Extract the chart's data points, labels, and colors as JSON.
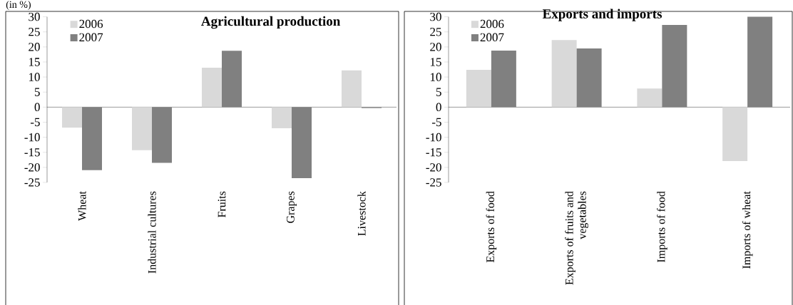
{
  "chart_data": [
    {
      "type": "bar",
      "title": "Agricultural production",
      "categories": [
        "Wheat",
        "Industrial cultures",
        "Fruits",
        "Grapes",
        "Livestock"
      ],
      "series": [
        {
          "name": "2006",
          "color": "#d9d9d9",
          "values": [
            -6.8,
            -14.3,
            13.1,
            -7.0,
            12.2
          ]
        },
        {
          "name": "2007",
          "color": "#808080",
          "values": [
            -20.9,
            -18.5,
            18.7,
            -23.6,
            -0.3
          ]
        }
      ],
      "ylim": [
        -25,
        30
      ],
      "yticks": [
        -25,
        -20,
        -15,
        -10,
        -5,
        0,
        5,
        10,
        15,
        20,
        25,
        30
      ],
      "legend": "top left",
      "annotations": [
        "(in %)"
      ]
    },
    {
      "type": "bar",
      "title": "Exports and imports",
      "categories": [
        "Exports of food",
        "Exports of fruits and vegetables",
        "Imports of food",
        "Imports of wheat"
      ],
      "series": [
        {
          "name": "2006",
          "color": "#d9d9d9",
          "values": [
            12.4,
            22.3,
            6.2,
            -17.9
          ]
        },
        {
          "name": "2007",
          "color": "#808080",
          "values": [
            18.8,
            19.5,
            27.3,
            30.0
          ]
        }
      ],
      "ylim": [
        -25,
        30
      ],
      "yticks": [
        -25,
        -20,
        -15,
        -10,
        -5,
        0,
        5,
        10,
        15,
        20,
        25,
        30
      ],
      "legend": "top left"
    }
  ]
}
